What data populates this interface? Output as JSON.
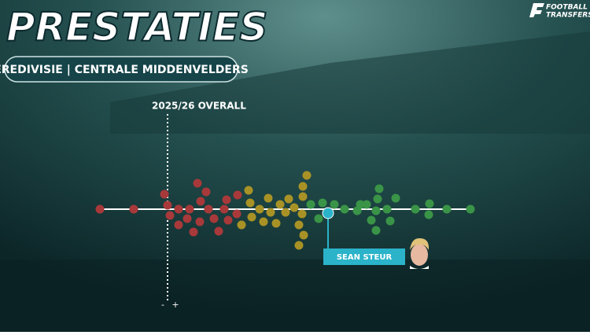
{
  "header": {
    "title": "PRESTATIES",
    "subtitle": "EREDIVISIE | CENTRALE MIDDENVELDERS"
  },
  "logo": {
    "line1": "FOOTBALL",
    "line2": "TRANSFERS"
  },
  "chart": {
    "label": "2025/26 OVERALL",
    "low": "-",
    "high": "+",
    "player": "SEAN STEUR"
  }
}
